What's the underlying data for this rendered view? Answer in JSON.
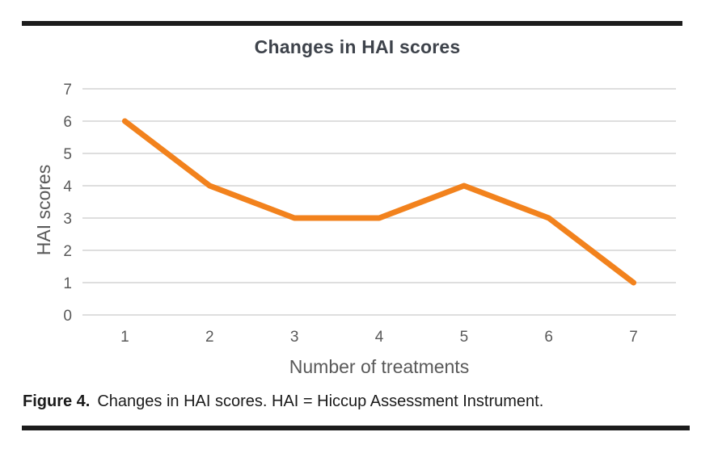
{
  "figure": {
    "caption_label": "Figure 4.",
    "caption_text": "Changes in HAI scores. HAI = Hiccup Assessment Instrument."
  },
  "chart_data": {
    "type": "line",
    "title": "Changes in HAI scores",
    "xlabel": "Number of treatments",
    "ylabel": "HAI scores",
    "categories": [
      "1",
      "2",
      "3",
      "4",
      "5",
      "6",
      "7"
    ],
    "values": [
      6,
      4,
      3,
      3,
      4,
      3,
      1
    ],
    "ylim": [
      0,
      7
    ],
    "ytick_step": 1,
    "xtick_labels": [
      "1",
      "2",
      "3",
      "4",
      "5",
      "6",
      "7"
    ],
    "ytick_labels": [
      "0",
      "1",
      "2",
      "3",
      "4",
      "5",
      "6",
      "7"
    ],
    "grid": true,
    "legend": false,
    "colors": {
      "line": "#F2821D",
      "gridline": "#D9D9D9",
      "axis_text": "#595959",
      "title_text": "#3E434B",
      "caption_text": "#1B1B1B",
      "rule": "#1C1C1C"
    }
  }
}
